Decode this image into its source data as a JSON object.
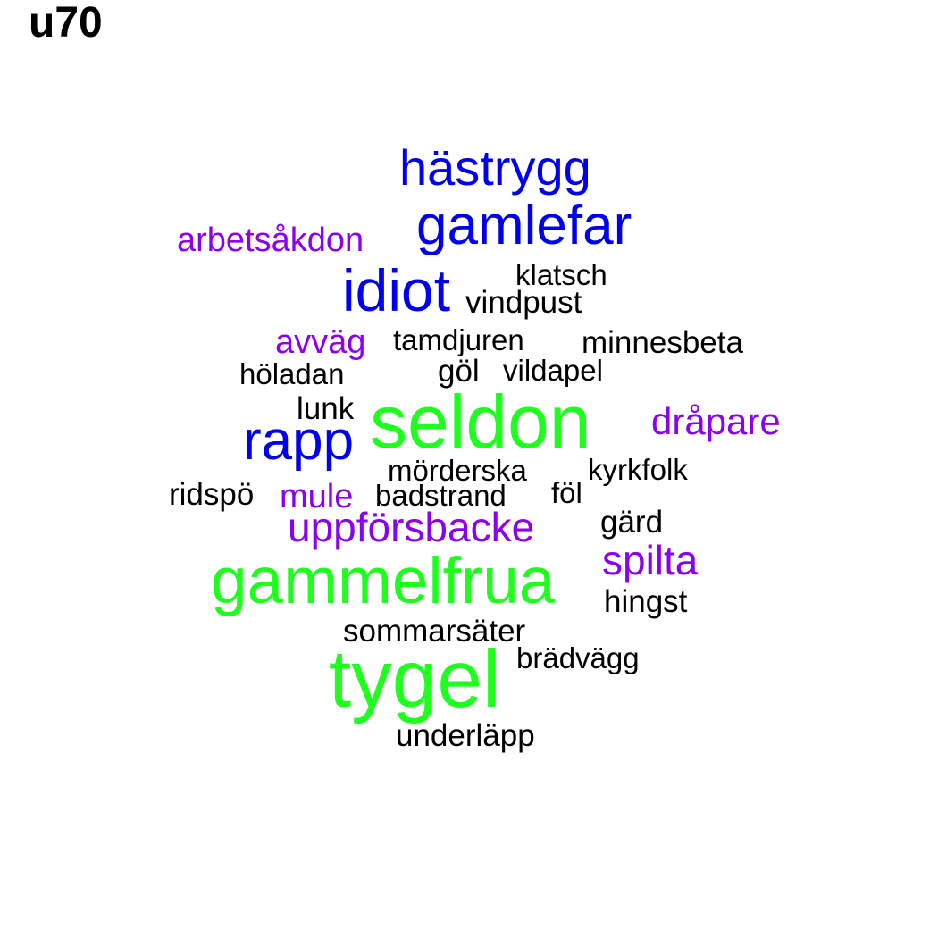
{
  "title": "u70",
  "colors": {
    "black": "#000000",
    "purple": "#8B00EE",
    "blue": "#0000EE",
    "green": "#1EFF1E"
  },
  "words": [
    {
      "text": "hästrygg",
      "color": "blue"
    },
    {
      "text": "gamlefar",
      "color": "blue"
    },
    {
      "text": "arbetsåkdon",
      "color": "purple"
    },
    {
      "text": "idiot",
      "color": "blue"
    },
    {
      "text": "klatsch",
      "color": "black"
    },
    {
      "text": "vindpust",
      "color": "black"
    },
    {
      "text": "avväg",
      "color": "purple"
    },
    {
      "text": "tamdjuren",
      "color": "black"
    },
    {
      "text": "minnesbeta",
      "color": "black"
    },
    {
      "text": "höladan",
      "color": "black"
    },
    {
      "text": "göl",
      "color": "black"
    },
    {
      "text": "vildapel",
      "color": "black"
    },
    {
      "text": "lunk",
      "color": "black"
    },
    {
      "text": "seldon",
      "color": "green"
    },
    {
      "text": "dråpare",
      "color": "purple"
    },
    {
      "text": "rapp",
      "color": "blue"
    },
    {
      "text": "mörderska",
      "color": "black"
    },
    {
      "text": "kyrkfolk",
      "color": "black"
    },
    {
      "text": "ridspö",
      "color": "black"
    },
    {
      "text": "mule",
      "color": "purple"
    },
    {
      "text": "badstrand",
      "color": "black"
    },
    {
      "text": "föl",
      "color": "black"
    },
    {
      "text": "uppförsbacke",
      "color": "purple"
    },
    {
      "text": "gärd",
      "color": "black"
    },
    {
      "text": "spilta",
      "color": "purple"
    },
    {
      "text": "gammelfrua",
      "color": "green"
    },
    {
      "text": "hingst",
      "color": "black"
    },
    {
      "text": "sommarsäter",
      "color": "black"
    },
    {
      "text": "brädvägg",
      "color": "black"
    },
    {
      "text": "tygel",
      "color": "green"
    },
    {
      "text": "underläpp",
      "color": "black"
    }
  ]
}
